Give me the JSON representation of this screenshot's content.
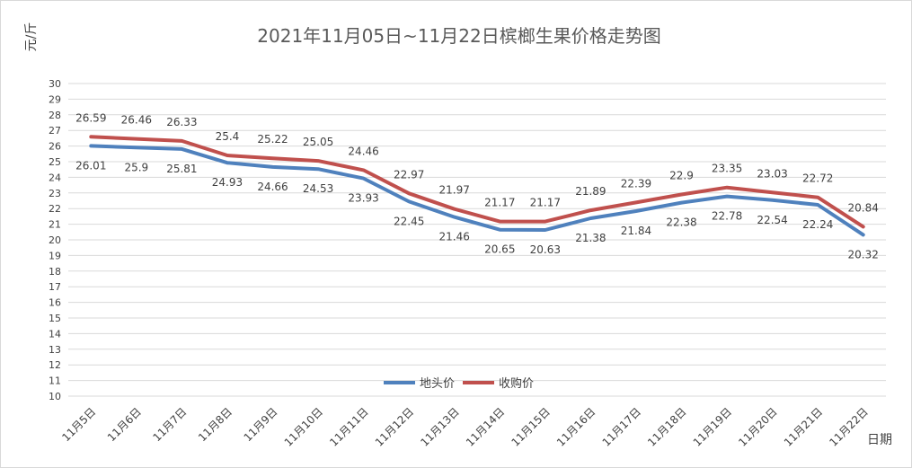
{
  "chart_data": {
    "type": "line",
    "title": "2021年11月05日~11月22日槟榔生果价格走势图",
    "ylabel": "元/斤",
    "xlabel": "日期",
    "ylim": [
      10,
      30
    ],
    "ytick_step": 1,
    "grid": true,
    "legend_position": "bottom-center",
    "categories": [
      "11月5日",
      "11月6日",
      "11月7日",
      "11月8日",
      "11月9日",
      "11月10日",
      "11月11日",
      "11月12日",
      "11月13日",
      "11月14日",
      "11月15日",
      "11月16日",
      "11月17日",
      "11月18日",
      "11月19日",
      "11月20日",
      "11月21日",
      "11月22日"
    ],
    "series": [
      {
        "name": "地头价",
        "color": "#4f81bd",
        "values": [
          26.01,
          25.9,
          25.81,
          24.93,
          24.66,
          24.53,
          23.93,
          22.45,
          21.46,
          20.65,
          20.63,
          21.38,
          21.84,
          22.38,
          22.78,
          22.54,
          22.24,
          20.32
        ]
      },
      {
        "name": "收购价",
        "color": "#c0504d",
        "values": [
          26.59,
          26.46,
          26.33,
          25.4,
          25.22,
          25.05,
          24.46,
          22.97,
          21.97,
          21.17,
          21.17,
          21.89,
          22.39,
          22.9,
          23.35,
          23.03,
          22.72,
          20.84
        ]
      }
    ]
  }
}
